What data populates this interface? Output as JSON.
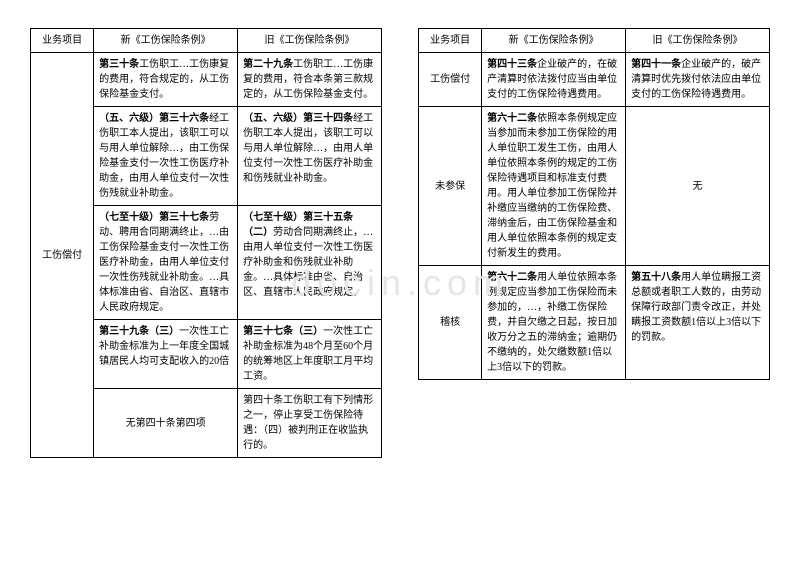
{
  "watermark": "docin.com",
  "left_table": {
    "headers": [
      "业务项目",
      "新《工伤保险条例》",
      "旧《工伤保险条例》"
    ],
    "group_label": "工伤偿付",
    "rows": [
      {
        "new": [
          {
            "t": "第三十条",
            "b": true
          },
          {
            "t": "工伤职工…工伤康复的费用，符合规定的，从工伤保险基金支付。",
            "b": false
          }
        ],
        "old": [
          {
            "t": "第二十九条",
            "b": true
          },
          {
            "t": "工伤职工…工伤康复的费用，符合本条第三款规定的，从工伤保险基金支付。",
            "b": false
          }
        ]
      },
      {
        "new": [
          {
            "t": "（五、六级）第三十六条",
            "b": true
          },
          {
            "t": "经工伤职工本人提出，该职工可以与用人单位解除…，由工伤保险基金支付一次性工伤医疗补助金，由用人单位支付一次性伤残就业补助金。",
            "b": false
          }
        ],
        "old": [
          {
            "t": "（五、六级）第三十四条",
            "b": true
          },
          {
            "t": "经工伤职工本人提出，该职工可以与用人单位解除…，由用人单位支付一次性工伤医疗补助金和伤残就业补助金。",
            "b": false
          }
        ]
      },
      {
        "new": [
          {
            "t": "（七至十级）第三十七条",
            "b": true
          },
          {
            "t": "劳动、聘用合同期满终止，…由工伤保险基金支付一次性工伤医疗补助金，由用人单位支付一次性伤残就业补助金。…具体标准由省、自治区、直辖市人民政府规定。",
            "b": false
          }
        ],
        "old": [
          {
            "t": "（七至十级）第三十五条（二）",
            "b": true
          },
          {
            "t": "劳动合同期满终止，…由用人单位支付一次性工伤医疗补助金和伤残就业补助金。…具体标准由省、自治区、直辖市人民政府规定。",
            "b": false
          }
        ]
      },
      {
        "new": [
          {
            "t": "第三十九条（三）",
            "b": true
          },
          {
            "t": "一次性工亡补助金标准为上一年度全国城镇居民人均可支配收入的20倍",
            "b": false
          }
        ],
        "old": [
          {
            "t": "第三十七条（三）",
            "b": true
          },
          {
            "t": "一次性工亡补助金标准为48个月至60个月的统筹地区上年度职工月平均工资。",
            "b": false
          }
        ]
      },
      {
        "new": [
          {
            "t": "无第四十条第四项",
            "b": false
          }
        ],
        "old": [
          {
            "t": "第四十条工伤职工有下列情形之一，停止享受工伤保险待遇：（四）被判刑正在收监执行的。",
            "b": false
          }
        ]
      }
    ]
  },
  "right_table": {
    "headers": [
      "业务项目",
      "新《工伤保险条例》",
      "旧《工伤保险条例》"
    ],
    "rows": [
      {
        "label": "工伤偿付",
        "new": [
          {
            "t": "第四十三条",
            "b": true
          },
          {
            "t": "企业破产的，在破产清算时依法拨付应当由单位支付的工伤保险待遇费用。",
            "b": false
          }
        ],
        "old": [
          {
            "t": "第四十一条",
            "b": true
          },
          {
            "t": "企业破产的，破产清算时优先拨付依法应由单位支付的工伤保险待遇费用。",
            "b": false
          }
        ]
      },
      {
        "label": "未参保",
        "new": [
          {
            "t": "第六十二条",
            "b": true
          },
          {
            "t": "依照本条例规定应当参加而未参加工伤保险的用人单位职工发生工伤，由用人单位依照本条例的规定的工伤保险待遇项目和标准支付费用。用人单位参加工伤保险并补缴应当缴纳的工伤保险费、滞纳金后，由工伤保险基金和用人单位依照本条例的规定支付新发生的费用。",
            "b": false
          }
        ],
        "old_center": "无"
      },
      {
        "label": "稽核",
        "new": [
          {
            "t": "第六十二条",
            "b": true
          },
          {
            "t": "用人单位依照本条例规定应当参加工伤保险而未参加的，…，补缴工伤保险费，并自欠缴之日起，按日加收万分之五的滞纳金；逾期仍不缴纳的，处欠缴数额1倍以上3倍以下的罚款。",
            "b": false
          }
        ],
        "old": [
          {
            "t": "第五十八条",
            "b": true
          },
          {
            "t": "用人单位瞒报工资总额或者职工人数的，由劳动保障行政部门责令改正，并处瞒报工资数额1倍以上3倍以下的罚款。",
            "b": false
          }
        ]
      }
    ]
  }
}
